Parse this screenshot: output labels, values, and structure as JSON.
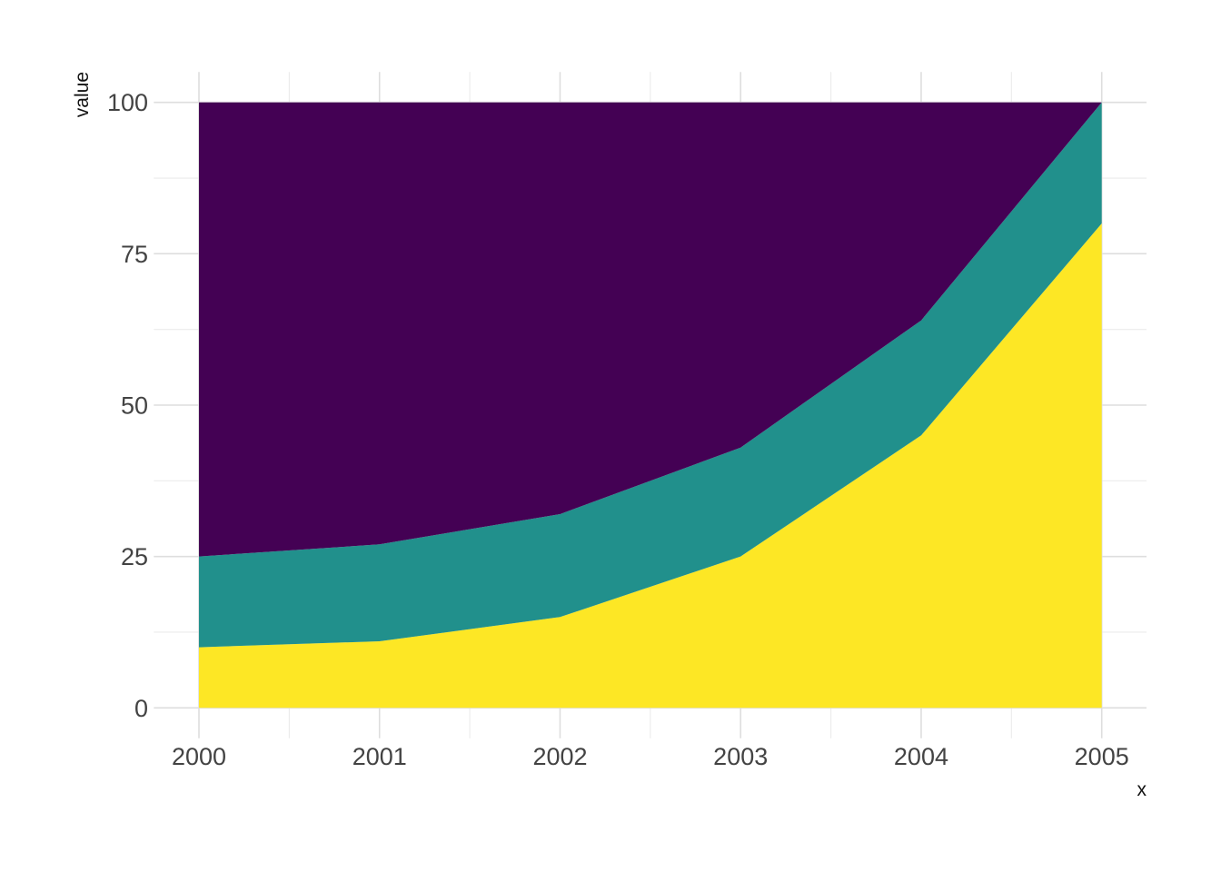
{
  "chart_data": {
    "type": "area",
    "stacked": true,
    "title": "",
    "xlabel": "x",
    "ylabel": "value",
    "x": [
      2000,
      2001,
      2002,
      2003,
      2004,
      2005
    ],
    "series": [
      {
        "name": "bottom-yellow",
        "color": "#FDE725",
        "values": [
          10,
          11,
          15,
          25,
          45,
          80
        ]
      },
      {
        "name": "middle-teal",
        "color": "#21908C",
        "values": [
          15,
          16,
          17,
          18,
          19,
          20
        ]
      },
      {
        "name": "top-purple",
        "color": "#440154",
        "values": [
          75,
          73,
          68,
          57,
          36,
          0
        ]
      }
    ],
    "stack_tops": {
      "yellow_top": [
        10,
        11,
        15,
        25,
        45,
        80
      ],
      "teal_top": [
        25,
        27,
        32,
        43,
        64,
        100
      ],
      "purple_top": [
        100,
        100,
        100,
        100,
        100,
        100
      ]
    },
    "xticks": [
      2000,
      2001,
      2002,
      2003,
      2004,
      2005
    ],
    "yticks": [
      0,
      25,
      50,
      75,
      100
    ],
    "xlim": [
      2000,
      2005
    ],
    "ylim": [
      0,
      100
    ],
    "grid": "major+minor",
    "legend": "none",
    "background": "#FFFFFF"
  }
}
